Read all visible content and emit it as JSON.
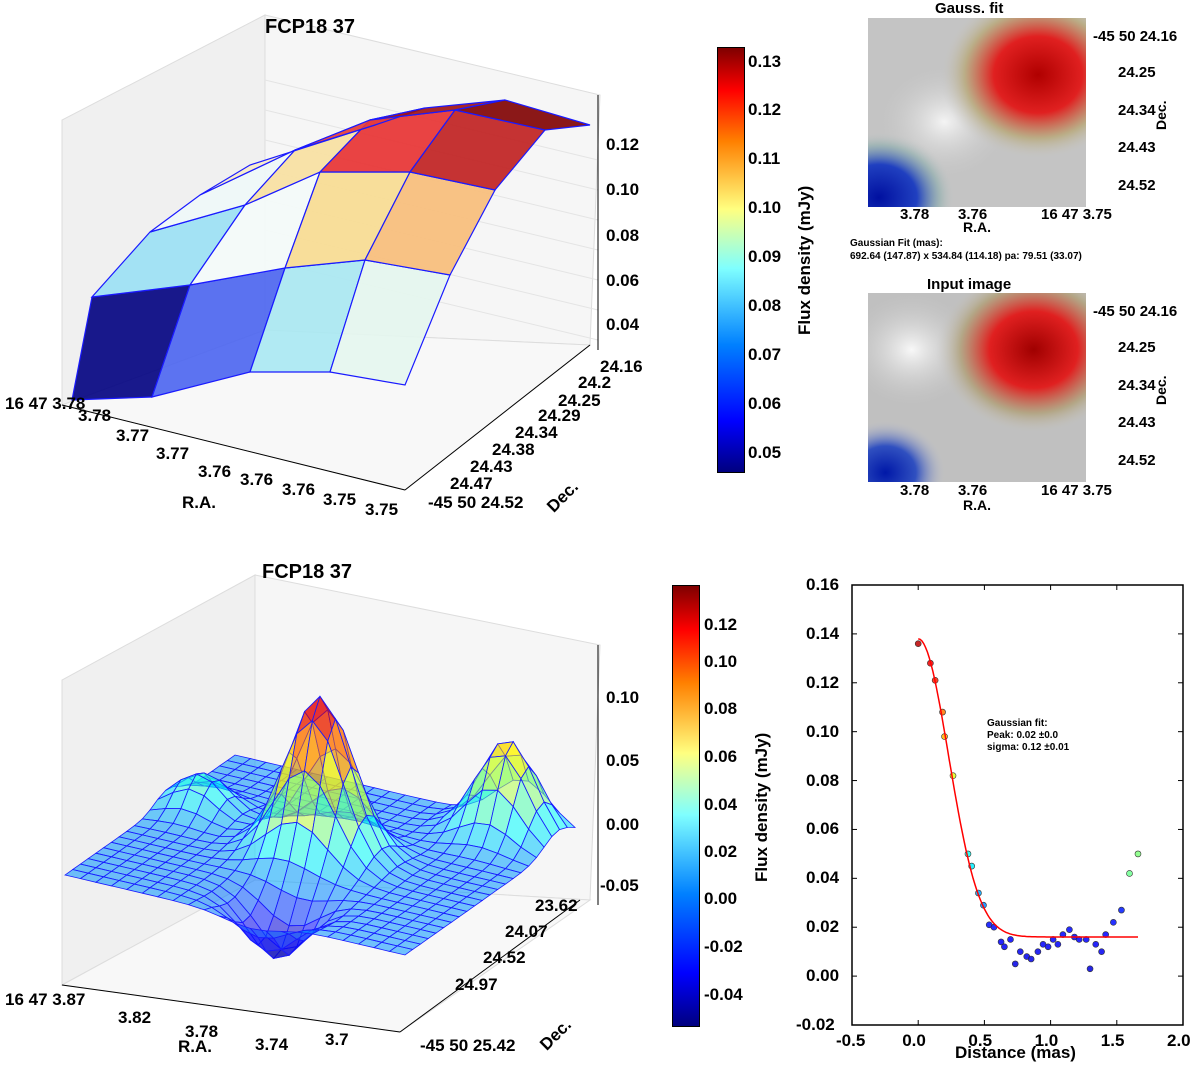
{
  "panel_3d_top": {
    "title": "FCP18 37",
    "z_ticks": [
      "0.12",
      "0.10",
      "0.08",
      "0.06",
      "0.04"
    ],
    "ra_ticks": [
      "16 47 3.78",
      "3.78",
      "3.77",
      "3.77",
      "3.76",
      "3.76",
      "3.76",
      "3.75",
      "3.75"
    ],
    "dec_ticks": [
      "24.16",
      "24.2",
      "24.25",
      "24.29",
      "24.34",
      "24.38",
      "24.43",
      "24.47",
      "-45 50 24.52"
    ],
    "xlabel": "R.A.",
    "ylabel": "Dec."
  },
  "colorbar_top": {
    "label": "Flux density (mJy)",
    "ticks": [
      "0.13",
      "0.12",
      "0.11",
      "0.10",
      "0.09",
      "0.08",
      "0.07",
      "0.06",
      "0.05"
    ]
  },
  "gauss_fit_image": {
    "title": "Gauss. fit",
    "dec_ticks": [
      "-45 50 24.16",
      "24.25",
      "24.34",
      "24.43",
      "24.52"
    ],
    "ra_ticks": [
      "3.78",
      "3.76",
      "16 47 3.75"
    ],
    "xlabel": "R.A.",
    "ylabel": "Dec."
  },
  "fit_info": {
    "line1": "Gaussian Fit (mas):",
    "line2": "692.64 (147.87) x 534.84 (114.18) pa: 79.51 (33.07)"
  },
  "input_image": {
    "title": "Input image",
    "dec_ticks": [
      "-45 50 24.16",
      "24.25",
      "24.34",
      "24.43",
      "24.52"
    ],
    "ra_ticks": [
      "3.78",
      "3.76",
      "16 47 3.75"
    ],
    "xlabel": "R.A.",
    "ylabel": "Dec."
  },
  "panel_3d_bottom": {
    "title": "FCP18 37",
    "z_ticks": [
      "0.10",
      "0.05",
      "0.00",
      "-0.05"
    ],
    "ra_ticks": [
      "16 47 3.87",
      "3.82",
      "3.78",
      "3.74",
      "3.7"
    ],
    "dec_ticks": [
      "23.62",
      "24.07",
      "24.52",
      "24.97",
      "-45 50 25.42"
    ],
    "xlabel": "R.A.",
    "ylabel": "Dec."
  },
  "colorbar_bottom": {
    "label": "Flux density (mJy)",
    "ticks": [
      "0.12",
      "0.10",
      "0.08",
      "0.06",
      "0.04",
      "0.02",
      "0.00",
      "-0.02",
      "-0.04"
    ]
  },
  "chart_data": {
    "type": "scatter",
    "title": "",
    "xlabel": "Distance (mas)",
    "ylabel": "",
    "xlim": [
      -0.5,
      2.0
    ],
    "ylim": [
      -0.02,
      0.16
    ],
    "x_ticks": [
      "-0.5",
      "0.0",
      "0.5",
      "1.0",
      "1.5",
      "2.0"
    ],
    "y_ticks": [
      "0.16",
      "0.14",
      "0.12",
      "0.10",
      "0.08",
      "0.06",
      "0.04",
      "0.02",
      "0.00",
      "-0.02"
    ],
    "points": [
      [
        0.0,
        0.136
      ],
      [
        0.092,
        0.128
      ],
      [
        0.128,
        0.121
      ],
      [
        0.184,
        0.108
      ],
      [
        0.199,
        0.098
      ],
      [
        0.263,
        0.082
      ],
      [
        0.376,
        0.05
      ],
      [
        0.404,
        0.045
      ],
      [
        0.455,
        0.034
      ],
      [
        0.493,
        0.029
      ],
      [
        0.536,
        0.021
      ],
      [
        0.572,
        0.02
      ],
      [
        0.626,
        0.014
      ],
      [
        0.651,
        0.012
      ],
      [
        0.697,
        0.015
      ],
      [
        0.733,
        0.005
      ],
      [
        0.771,
        0.01
      ],
      [
        0.82,
        0.008
      ],
      [
        0.853,
        0.007
      ],
      [
        0.904,
        0.01
      ],
      [
        0.943,
        0.013
      ],
      [
        0.981,
        0.012
      ],
      [
        1.019,
        0.015
      ],
      [
        1.055,
        0.013
      ],
      [
        1.093,
        0.017
      ],
      [
        1.142,
        0.019
      ],
      [
        1.18,
        0.016
      ],
      [
        1.216,
        0.015
      ],
      [
        1.269,
        0.015
      ],
      [
        1.298,
        0.003
      ],
      [
        1.341,
        0.013
      ],
      [
        1.385,
        0.01
      ],
      [
        1.416,
        0.017
      ],
      [
        1.474,
        0.022
      ],
      [
        1.535,
        0.027
      ],
      [
        1.596,
        0.042
      ],
      [
        1.66,
        0.05
      ]
    ],
    "fit_curve": {
      "amplitude": 0.122,
      "center": 0.0,
      "width": 0.23,
      "baseline": 0.016,
      "x_range": [
        0.0,
        1.66
      ],
      "color": "#ff0000"
    },
    "annotation": {
      "line1": "Gaussian fit:",
      "line2": "Peak: 0.02 ±0.0",
      "line3": "sigma: 0.12 ±0.01"
    }
  }
}
